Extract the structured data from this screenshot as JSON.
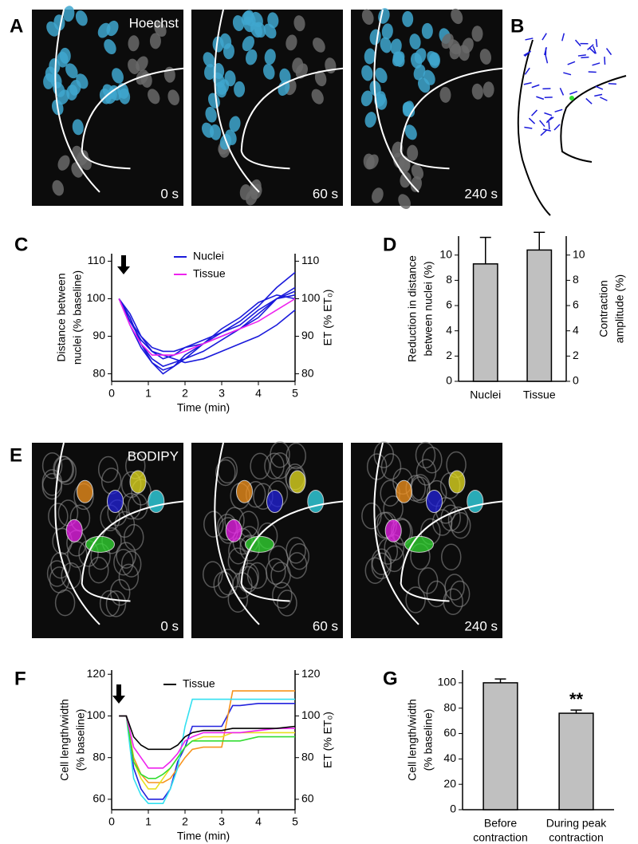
{
  "panel_labels": [
    "A",
    "B",
    "C",
    "D",
    "E",
    "F",
    "G"
  ],
  "images": {
    "A": {
      "stain": "Hoechst",
      "times": [
        "0 s",
        "60 s",
        "240 s"
      ]
    },
    "E": {
      "stain": "BODIPY",
      "times": [
        "0 s",
        "60 s",
        "240 s"
      ]
    }
  },
  "chart_data": [
    {
      "type": "line",
      "x": [
        0.2,
        0.5,
        0.8,
        1.1,
        1.4,
        1.7,
        2.0,
        2.5,
        3.0,
        3.5,
        4.0,
        4.5,
        5.0
      ],
      "series": [
        {
          "name": "Nuclei",
          "color": "#1a1adb",
          "values": [
            100,
            95,
            88,
            84,
            82,
            83,
            84,
            86,
            89,
            92,
            95,
            100,
            103
          ]
        },
        {
          "color": "#1a1adb",
          "values": [
            100,
            93,
            87,
            83,
            81,
            82,
            84,
            88,
            91,
            94,
            98,
            103,
            107
          ]
        },
        {
          "color": "#1a1adb",
          "values": [
            100,
            94,
            89,
            86,
            85,
            84,
            83,
            84,
            86,
            88,
            90,
            93,
            97
          ]
        },
        {
          "color": "#1a1adb",
          "values": [
            100,
            96,
            90,
            86,
            84,
            85,
            87,
            89,
            91,
            93,
            97,
            100,
            102
          ]
        },
        {
          "color": "#1a1adb",
          "values": [
            100,
            95,
            88,
            83,
            80,
            82,
            85,
            88,
            92,
            95,
            99,
            101,
            100
          ]
        },
        {
          "color": "#1a1adb",
          "values": [
            100,
            94,
            90,
            87,
            86,
            86,
            87,
            88,
            90,
            92,
            96,
            100,
            101
          ]
        },
        {
          "name": "Tissue",
          "color": "#ee22ee",
          "values": [
            100,
            93,
            88,
            85,
            85,
            85,
            86,
            88,
            90,
            92,
            94,
            97,
            100
          ]
        }
      ],
      "xlim": [
        0,
        5
      ],
      "xticks": [
        0,
        1,
        2,
        3,
        4,
        5
      ],
      "xlabel": "Time (min)",
      "ylim": [
        78,
        112
      ],
      "yticks": [
        80,
        90,
        100,
        110
      ],
      "ylabel": [
        "Distance between",
        "nuclei (% baseline)"
      ],
      "y2lim": [
        78,
        112
      ],
      "y2ticks": [
        80,
        90,
        100,
        110
      ],
      "y2label": [
        "ET (% ET₀)"
      ]
    },
    {
      "type": "bar",
      "categories": [
        [
          "Nuclei"
        ],
        [
          "Tissue"
        ]
      ],
      "values": [
        9.3,
        10.4
      ],
      "errors": [
        2.1,
        1.4
      ],
      "color": "#c0c0c0",
      "ylim": [
        0,
        11.5
      ],
      "yticks": [
        0,
        2,
        4,
        6,
        8,
        10
      ],
      "ylabel": [
        "Reduction in distance",
        "between nuclei (%)"
      ],
      "y2lim": [
        0,
        11.5
      ],
      "y2ticks": [
        0,
        2,
        4,
        6,
        8,
        10
      ],
      "y2label": [
        "Contraction",
        "amplitude (%)"
      ]
    },
    {
      "type": "line",
      "x": [
        0.2,
        0.4,
        0.6,
        0.8,
        1.0,
        1.2,
        1.4,
        1.6,
        1.8,
        2.0,
        2.2,
        2.5,
        3.0,
        3.3,
        3.5,
        4.0,
        4.5,
        5.0
      ],
      "series": [
        {
          "color": "#2222dd",
          "values": [
            100,
            100,
            75,
            65,
            60,
            60,
            60,
            65,
            78,
            85,
            95,
            95,
            95,
            105,
            105,
            106,
            106,
            106
          ]
        },
        {
          "color": "#f7941d",
          "values": [
            100,
            100,
            80,
            72,
            68,
            68,
            68,
            70,
            75,
            80,
            84,
            85,
            85,
            112,
            112,
            112,
            112,
            112
          ]
        },
        {
          "color": "#33e0f0",
          "values": [
            100,
            100,
            70,
            62,
            58,
            58,
            58,
            65,
            75,
            95,
            108,
            108,
            108,
            108,
            108,
            108,
            108,
            108
          ]
        },
        {
          "color": "#e8e020",
          "values": [
            100,
            100,
            78,
            70,
            65,
            65,
            70,
            75,
            80,
            85,
            88,
            90,
            90,
            92,
            92,
            92,
            92,
            92
          ]
        },
        {
          "color": "#33dd33",
          "values": [
            100,
            100,
            78,
            72,
            70,
            70,
            72,
            75,
            80,
            85,
            88,
            88,
            88,
            88,
            88,
            90,
            90,
            90
          ]
        },
        {
          "color": "#ee22ee",
          "values": [
            100,
            100,
            85,
            80,
            75,
            75,
            75,
            78,
            82,
            88,
            90,
            92,
            92,
            92,
            92,
            93,
            94,
            94
          ]
        },
        {
          "name": "Tissue",
          "color": "#000000",
          "values": [
            100,
            100,
            90,
            86,
            84,
            84,
            84,
            84,
            86,
            90,
            92,
            93,
            93,
            94,
            94,
            94,
            94,
            95
          ]
        }
      ],
      "xlim": [
        0,
        5
      ],
      "xticks": [
        0,
        1,
        2,
        3,
        4,
        5
      ],
      "xlabel": "Time (min)",
      "ylim": [
        55,
        122
      ],
      "yticks": [
        60,
        80,
        100,
        120
      ],
      "ylabel": [
        "Cell length/width",
        "(% baseline)"
      ],
      "y2lim": [
        55,
        122
      ],
      "y2ticks": [
        60,
        80,
        100,
        120
      ],
      "y2label": [
        "ET (% ET₀)"
      ]
    },
    {
      "type": "bar",
      "categories": [
        [
          "Before",
          "contraction"
        ],
        [
          "During peak",
          "contraction"
        ]
      ],
      "values": [
        100,
        76
      ],
      "errors": [
        3,
        2.5
      ],
      "color": "#c0c0c0",
      "ylim": [
        0,
        110
      ],
      "yticks": [
        0,
        20,
        40,
        60,
        80,
        100
      ],
      "ylabel": [
        "Cell length/width",
        "(% baseline)"
      ],
      "annotation": "**"
    }
  ]
}
